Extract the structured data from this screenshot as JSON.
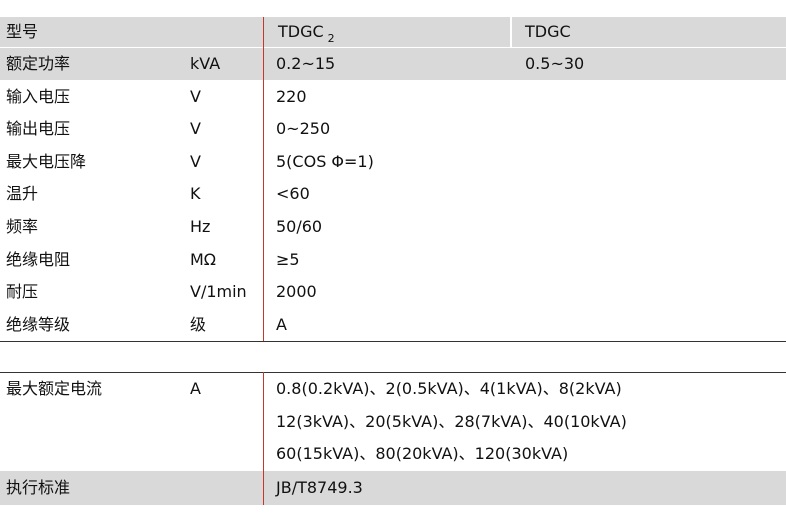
{
  "header": {
    "model": "型号",
    "col3": {
      "text": "TDGC",
      "sub": "2"
    },
    "col4": "TDGC"
  },
  "rows": [
    [
      "额定功率",
      "kVA",
      "0.2~15",
      "0.5~30"
    ],
    [
      "输入电压",
      "V",
      "220"
    ],
    [
      "输出电压",
      "V",
      "0~250"
    ],
    [
      "最大电压降",
      "V",
      "5(COS Φ=1)"
    ],
    [
      "温升",
      "K",
      "<60"
    ],
    [
      "频率",
      "Hz",
      "50/60"
    ],
    [
      "绝缘电阻",
      "MΩ",
      "≥5"
    ],
    [
      "耐压",
      "V/1min",
      "2000"
    ],
    [
      "绝缘等级",
      "级",
      "A"
    ]
  ],
  "current": {
    "name": "最大额定电流",
    "unit": "A",
    "lines": [
      "0.8(0.2kVA)、2(0.5kVA)、4(1kVA)、8(2kVA)",
      "12(3kVA)、20(5kVA)、28(7kVA)、40(10kVA)",
      "60(15kVA)、80(20kVA)、120(30kVA)"
    ]
  },
  "standard": {
    "name": "执行标准",
    "value": "JB/T8749.3"
  }
}
